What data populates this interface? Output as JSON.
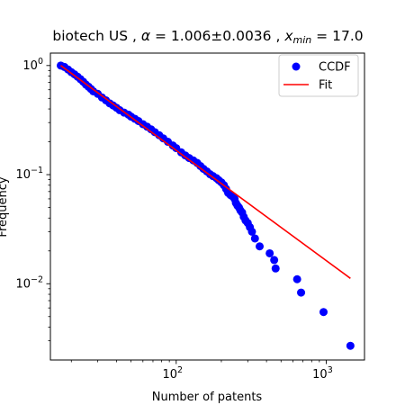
{
  "chart_data": {
    "type": "scatter",
    "title": {
      "prefix": "biotech US , ",
      "alpha_symbol": "α",
      "alpha_value": " = 1.006±0.0036 , ",
      "xmin_symbol": "x",
      "xmin_sub": "min",
      "xmin_value": " = 17.0"
    },
    "xlabel": "Number of patents",
    "ylabel": "Frequency",
    "xscale": "log",
    "yscale": "log",
    "xlim": [
      14.5,
      1800
    ],
    "ylim": [
      0.002,
      1.3
    ],
    "x_ticks": [
      {
        "value": 100,
        "base": "10",
        "exp": "2"
      },
      {
        "value": 1000,
        "base": "10",
        "exp": "3"
      }
    ],
    "y_ticks": [
      {
        "value": 0.01,
        "base": "10",
        "exp": "−2"
      },
      {
        "value": 0.1,
        "base": "10",
        "exp": "−1"
      },
      {
        "value": 1,
        "base": "10",
        "exp": "0"
      }
    ],
    "grid": false,
    "legend": {
      "placement": "top-right",
      "entries": [
        {
          "label": "CCDF",
          "marker": "circle",
          "color": "#0000ff"
        },
        {
          "label": "Fit",
          "marker": "line",
          "color": "#ff0000"
        }
      ]
    },
    "series": [
      {
        "name": "CCDF",
        "kind": "scatter",
        "color": "#0000ff",
        "x": [
          17,
          18,
          19,
          20,
          21,
          22,
          23,
          24,
          25,
          26,
          27,
          28,
          30,
          32,
          34,
          36,
          38,
          40,
          42,
          45,
          48,
          50,
          53,
          56,
          60,
          64,
          68,
          72,
          77,
          82,
          88,
          95,
          100,
          108,
          115,
          122,
          130,
          138,
          145,
          152,
          160,
          168,
          176,
          185,
          192,
          200,
          208,
          215,
          222,
          230,
          238,
          245,
          250,
          256,
          262,
          268,
          275,
          282,
          290,
          300,
          310,
          320,
          335,
          360,
          420,
          450,
          460,
          640,
          680,
          960,
          1450
        ],
        "y": [
          1.0,
          0.97,
          0.92,
          0.87,
          0.83,
          0.79,
          0.75,
          0.71,
          0.67,
          0.64,
          0.61,
          0.58,
          0.55,
          0.51,
          0.48,
          0.45,
          0.43,
          0.41,
          0.39,
          0.37,
          0.355,
          0.34,
          0.325,
          0.31,
          0.29,
          0.275,
          0.26,
          0.245,
          0.23,
          0.215,
          0.2,
          0.185,
          0.175,
          0.16,
          0.15,
          0.142,
          0.135,
          0.128,
          0.12,
          0.113,
          0.107,
          0.101,
          0.097,
          0.093,
          0.089,
          0.085,
          0.08,
          0.074,
          0.068,
          0.065,
          0.063,
          0.06,
          0.055,
          0.052,
          0.05,
          0.047,
          0.045,
          0.041,
          0.038,
          0.036,
          0.033,
          0.03,
          0.026,
          0.022,
          0.019,
          0.0165,
          0.0138,
          0.011,
          0.0083,
          0.0055,
          0.0027
        ]
      },
      {
        "name": "Fit",
        "kind": "line",
        "color": "#ff0000",
        "x": [
          17,
          1450
        ],
        "y": [
          1.0,
          0.0112
        ]
      }
    ]
  }
}
